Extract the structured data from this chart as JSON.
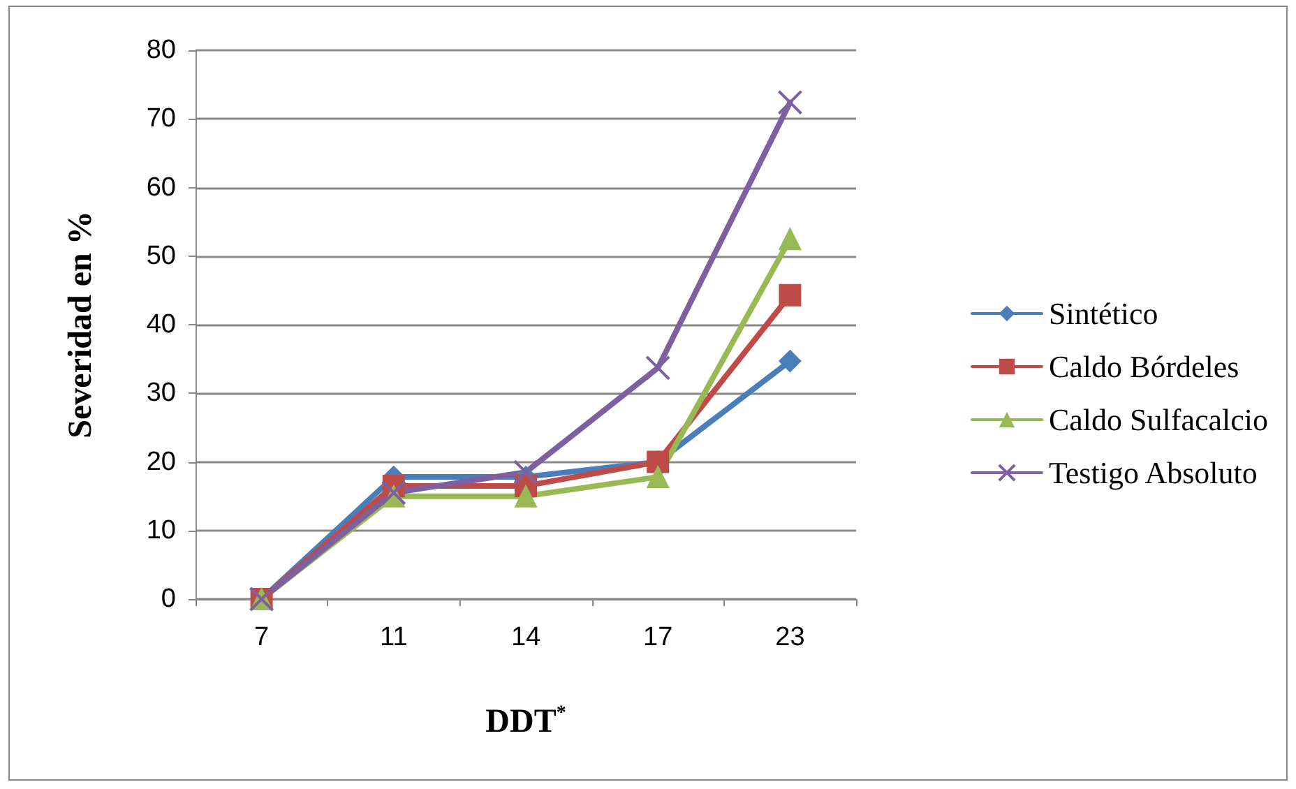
{
  "chart_data": {
    "type": "line",
    "xlabel": "DDT$^{*}$",
    "ylabel": "Severidad en %",
    "categories": [
      "7",
      "11",
      "14",
      "17",
      "23"
    ],
    "series": [
      {
        "name": "Sintético",
        "color": "#4a7ebb",
        "marker": "diamond",
        "values": [
          0,
          17.8,
          17.8,
          20,
          34.7
        ]
      },
      {
        "name": "Caldo Bórdeles",
        "color": "#be4b48",
        "marker": "square",
        "values": [
          0,
          16.5,
          16.5,
          20,
          44.3
        ]
      },
      {
        "name": "Caldo Sulfacalcio",
        "color": "#98b954",
        "marker": "triangle",
        "values": [
          0,
          15,
          15,
          17.8,
          52.5
        ]
      },
      {
        "name": "Testigo Absoluto",
        "color": "#7d60a0",
        "marker": "cross",
        "values": [
          0,
          15.5,
          18.5,
          33.7,
          72.4
        ]
      }
    ],
    "ylim": [
      0,
      80
    ],
    "yticks": [
      0,
      10,
      20,
      30,
      40,
      50,
      60,
      70,
      80
    ],
    "grid": "y",
    "legend": "right",
    "line_style": "solid"
  }
}
